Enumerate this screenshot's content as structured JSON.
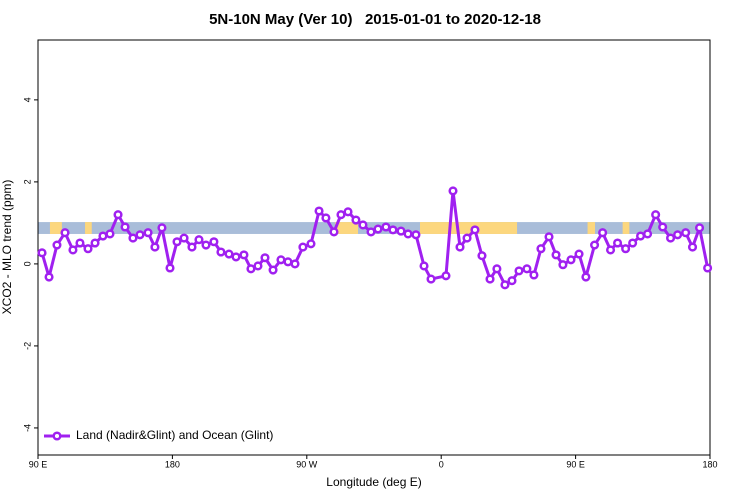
{
  "chart_data": {
    "type": "line",
    "title": "5N-10N May (Ver 10)   2015-01-01 to 2020-12-18",
    "x_label": "Longitude (deg E)",
    "y_label": "XCO2 - MLO trend (ppm)",
    "xlim": [
      90,
      540
    ],
    "xticks": [
      {
        "value": 90,
        "label": "90 E"
      },
      {
        "value": 180,
        "label": "180"
      },
      {
        "value": 270,
        "label": "90 W"
      },
      {
        "value": 360,
        "label": "0"
      },
      {
        "value": 450,
        "label": "90 E"
      },
      {
        "value": 540,
        "label": "180"
      }
    ],
    "ylim": [
      -4.66,
      5.46
    ],
    "yticks": [
      -4,
      -2,
      0,
      2,
      4
    ],
    "legend_position": "bottom-left",
    "band": {
      "ylim": [
        0.73,
        1.02
      ],
      "ocean_color": "#a9bdd9",
      "land_color": "#fcd77e",
      "land": [
        [
          98,
          106
        ],
        [
          121.5,
          126
        ],
        [
          289,
          304.3
        ],
        [
          345.8,
          410.8
        ],
        [
          458,
          463
        ],
        [
          481.5,
          486
        ]
      ]
    },
    "x": [
      92.7,
      97.4,
      102.7,
      108.1,
      113.4,
      118.1,
      123.5,
      128.2,
      133.5,
      138.2,
      143.6,
      148.3,
      153.6,
      158.3,
      163.7,
      168.3,
      173.0,
      178.4,
      183.1,
      187.8,
      193.1,
      197.8,
      202.5,
      207.8,
      212.5,
      217.9,
      222.6,
      227.9,
      232.6,
      237.3,
      242.0,
      247.4,
      252.7,
      257.4,
      262.1,
      267.4,
      272.8,
      278.2,
      282.8,
      288.2,
      292.9,
      297.6,
      302.9,
      307.6,
      313.0,
      317.7,
      323.0,
      327.7,
      333.1,
      337.8,
      343.1,
      348.5,
      353.2,
      363.2,
      367.9,
      372.6,
      377.3,
      382.6,
      387.3,
      392.7,
      397.3,
      402.7,
      407.4,
      412.1,
      417.4,
      422.1,
      426.8,
      432.2,
      436.9,
      441.5,
      446.9,
      452.3,
      456.9,
      462.7,
      468.1,
      473.4,
      478.1,
      483.5,
      488.2,
      493.5,
      498.2,
      503.6,
      508.3,
      513.6,
      518.3,
      523.7,
      528.3,
      533.0,
      538.4
    ],
    "series": [
      {
        "name": "Land (Nadir&Glint) and Ocean (Glint)",
        "color": "#a020f0",
        "values": [
          0.27,
          -0.32,
          0.46,
          0.76,
          0.34,
          0.51,
          0.37,
          0.51,
          0.68,
          0.73,
          1.2,
          0.9,
          0.63,
          0.71,
          0.76,
          0.41,
          0.88,
          -0.1,
          0.54,
          0.63,
          0.41,
          0.59,
          0.46,
          0.54,
          0.29,
          0.24,
          0.17,
          0.22,
          -0.12,
          -0.05,
          0.15,
          -0.15,
          0.1,
          0.05,
          0.0,
          0.41,
          0.49,
          1.29,
          1.12,
          0.78,
          1.2,
          1.27,
          1.07,
          0.95,
          0.78,
          0.85,
          0.9,
          0.83,
          0.8,
          0.73,
          0.71,
          -0.05,
          -0.37,
          -0.29,
          1.78,
          0.41,
          0.63,
          0.83,
          0.2,
          -0.37,
          -0.12,
          -0.51,
          -0.41,
          -0.17,
          -0.12,
          -0.27,
          0.37,
          0.66,
          0.22,
          -0.02,
          0.1,
          0.24,
          -0.32,
          0.46,
          0.76,
          0.34,
          0.51,
          0.37,
          0.51,
          0.68,
          0.73,
          1.2,
          0.9,
          0.63,
          0.71,
          0.76,
          0.41,
          0.88,
          -0.1
        ]
      }
    ]
  }
}
